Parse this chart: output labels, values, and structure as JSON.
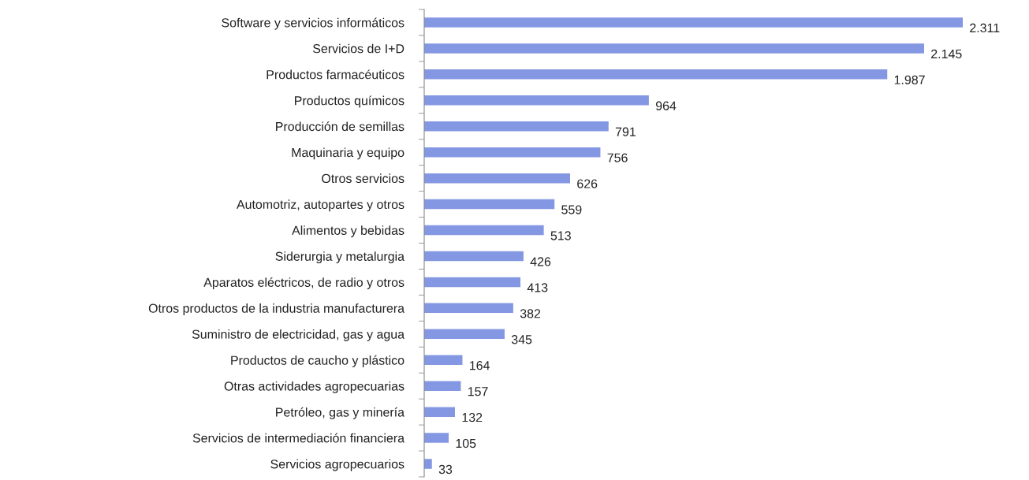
{
  "chart_data": {
    "type": "bar",
    "orientation": "horizontal",
    "color": "#8497e2",
    "categories": [
      "Software y servicios informáticos",
      "Servicios de I+D",
      "Productos farmacéuticos",
      "Productos químicos",
      "Producción de semillas",
      "Maquinaria y equipo",
      "Otros servicios",
      "Automotriz, autopartes y otros",
      "Alimentos y bebidas",
      "Siderurgia y metalurgia",
      "Aparatos eléctricos, de radio y otros",
      "Otros productos de la industria manufacturera",
      "Suministro de electricidad, gas y agua",
      "Productos de caucho y plástico",
      "Otras actividades agropecuarias",
      "Petróleo, gas y minería",
      "Servicios de intermediación financiera",
      "Servicios agropecuarios"
    ],
    "values": [
      2311,
      2145,
      1987,
      964,
      791,
      756,
      626,
      559,
      513,
      426,
      413,
      382,
      345,
      164,
      157,
      132,
      105,
      33
    ],
    "value_labels": [
      "2.311",
      "2.145",
      "1.987",
      "964",
      "791",
      "756",
      "626",
      "559",
      "513",
      "426",
      "413",
      "382",
      "345",
      "164",
      "157",
      "132",
      "105",
      "33"
    ],
    "tick_labels": "y",
    "grid": false,
    "legend": false
  }
}
